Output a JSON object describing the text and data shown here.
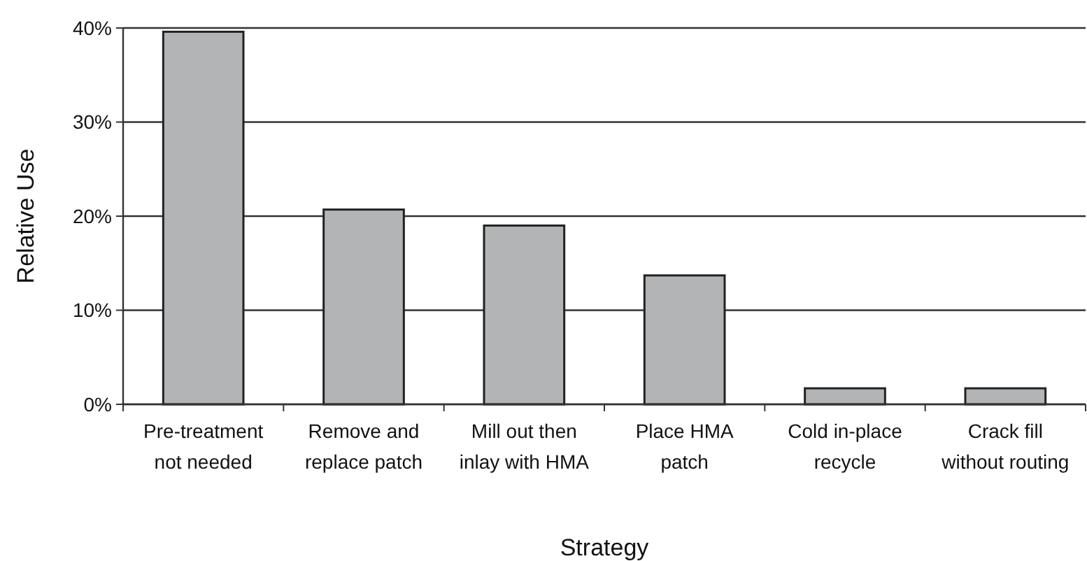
{
  "chart_data": {
    "type": "bar",
    "xlabel": "Strategy",
    "ylabel": "Relative Use",
    "categories": [
      "Pre-treatment not needed",
      "Remove and replace patch",
      "Mill out then inlay with HMA",
      "Place HMA patch",
      "Cold in-place recycle",
      "Crack fill without routing"
    ],
    "values": [
      39.6,
      20.7,
      19.0,
      13.7,
      1.7,
      1.7
    ],
    "color": "#b3b4b6",
    "ylim": [
      0,
      40
    ],
    "yticks": [
      {
        "value": 0,
        "label": "0%"
      },
      {
        "value": 10,
        "label": "10%"
      },
      {
        "value": 20,
        "label": "20%"
      },
      {
        "value": 30,
        "label": "30%"
      },
      {
        "value": 40,
        "label": "40%"
      }
    ],
    "grid": "y"
  }
}
